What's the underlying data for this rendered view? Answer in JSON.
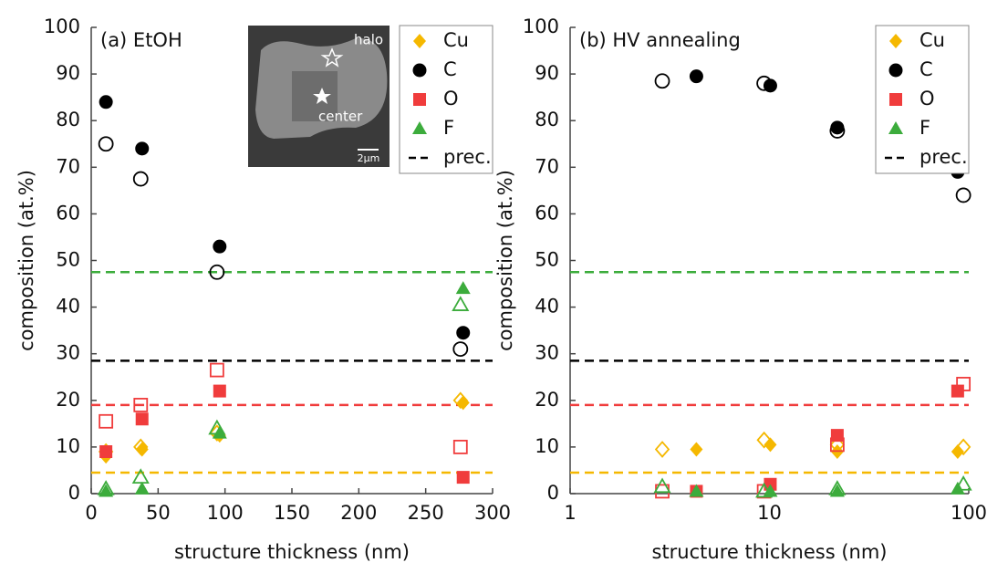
{
  "chart_data": [
    {
      "type": "scatter",
      "panel_label": "(a) EtOH",
      "x_label": "structure thickness (nm)",
      "y_label": "composition (at.%)",
      "log_x": false,
      "x": [
        11,
        38,
        96,
        278
      ],
      "x_halo": [
        11,
        37,
        94,
        276
      ],
      "xlim": [
        0,
        300
      ],
      "xticks": [
        0,
        50,
        100,
        150,
        200,
        250,
        300
      ],
      "ylim": [
        0,
        100
      ],
      "yticks": [
        0,
        10,
        20,
        30,
        40,
        50,
        60,
        70,
        80,
        90,
        100
      ],
      "legend": "top-right",
      "precursor_label": "prec.",
      "inset": {
        "halo": "halo",
        "center": "center",
        "scale": "2µm"
      },
      "series": [
        {
          "name": "Cu",
          "color": "#f5b800",
          "marker": "diamond",
          "values": [
            8,
            9.5,
            12.5,
            19.5
          ],
          "halo_values": [
            9,
            10,
            13,
            20
          ],
          "precursor": 4.5
        },
        {
          "name": "C",
          "color": "#000000",
          "marker": "circle",
          "values": [
            84,
            74,
            53,
            34.5
          ],
          "halo_values": [
            75,
            67.5,
            47.5,
            31
          ],
          "precursor": 28.5
        },
        {
          "name": "O",
          "color": "#f03c3c",
          "marker": "square",
          "values": [
            9,
            16,
            22,
            3.5
          ],
          "halo_values": [
            15.5,
            19,
            26.5,
            10
          ],
          "precursor": 19
        },
        {
          "name": "F",
          "color": "#3cac3c",
          "marker": "triangle",
          "values": [
            0.5,
            1,
            13,
            44
          ],
          "halo_values": [
            1,
            3.5,
            14,
            40.5
          ],
          "precursor": 47.5
        }
      ]
    },
    {
      "type": "scatter",
      "panel_label": "(b) HV annealing",
      "x_label": "structure thickness (nm)",
      "y_label": "composition (at.%)",
      "log_x": true,
      "x": [
        4.3,
        10.1,
        21.9,
        88
      ],
      "x_halo": [
        2.9,
        9.4,
        21.9,
        94
      ],
      "xlim": [
        1,
        100
      ],
      "xticks": [
        1,
        10,
        100
      ],
      "ylim": [
        0,
        100
      ],
      "yticks": [
        0,
        10,
        20,
        30,
        40,
        50,
        60,
        70,
        80,
        90,
        100
      ],
      "legend": "top-right",
      "precursor_label": "prec.",
      "series": [
        {
          "name": "Cu",
          "color": "#f5b800",
          "marker": "diamond",
          "values": [
            9.5,
            10.5,
            9,
            9
          ],
          "halo_values": [
            9.5,
            11.5,
            10.5,
            10
          ],
          "precursor": 4.5
        },
        {
          "name": "C",
          "color": "#000000",
          "marker": "circle",
          "values": [
            89.5,
            87.5,
            78.5,
            69
          ],
          "halo_values": [
            88.5,
            88,
            77.8,
            64
          ],
          "precursor": 28.5
        },
        {
          "name": "O",
          "color": "#f03c3c",
          "marker": "square",
          "values": [
            0.5,
            2,
            12.5,
            22
          ],
          "halo_values": [
            0.5,
            0.5,
            10.5,
            23.5
          ],
          "precursor": 19
        },
        {
          "name": "F",
          "color": "#3cac3c",
          "marker": "triangle",
          "values": [
            0.5,
            0.5,
            0.5,
            1
          ],
          "halo_values": [
            1.5,
            0.5,
            1,
            2
          ],
          "precursor": 47.5
        }
      ]
    }
  ]
}
